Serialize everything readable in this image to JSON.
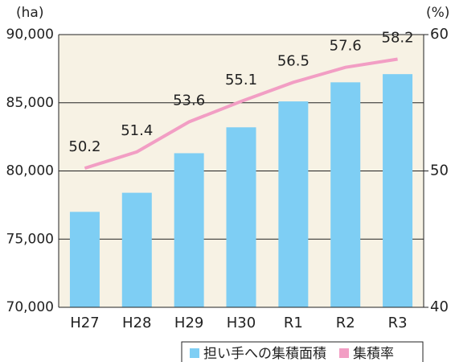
{
  "chart_data": {
    "type": "bar",
    "y_axis_label": "(ha)",
    "y2_axis_label": "(%)",
    "categories": [
      "H27",
      "H28",
      "H29",
      "H30",
      "R1",
      "R2",
      "R3"
    ],
    "series": [
      {
        "name": "担い手への集積面積",
        "type": "bar",
        "color": "#7ecef4",
        "values": [
          77000,
          78400,
          81300,
          83200,
          85100,
          86500,
          87100
        ]
      },
      {
        "name": "集積率",
        "type": "line",
        "axis": "y2",
        "color": "#f29ec4",
        "values": [
          50.2,
          51.4,
          53.6,
          55.1,
          56.5,
          57.6,
          58.2
        ]
      }
    ],
    "ylim": [
      70000,
      90000
    ],
    "yticks": [
      {
        "value": 70000,
        "label": "70,000"
      },
      {
        "value": 75000,
        "label": "75,000"
      },
      {
        "value": 80000,
        "label": "80,000"
      },
      {
        "value": 85000,
        "label": "85,000"
      },
      {
        "value": 90000,
        "label": "90,000"
      }
    ],
    "y2lim": [
      40,
      60
    ],
    "y2ticks": [
      40,
      50,
      60
    ],
    "grid": true,
    "legend": "bottom-right",
    "plot_background": "#f7f2e4"
  }
}
